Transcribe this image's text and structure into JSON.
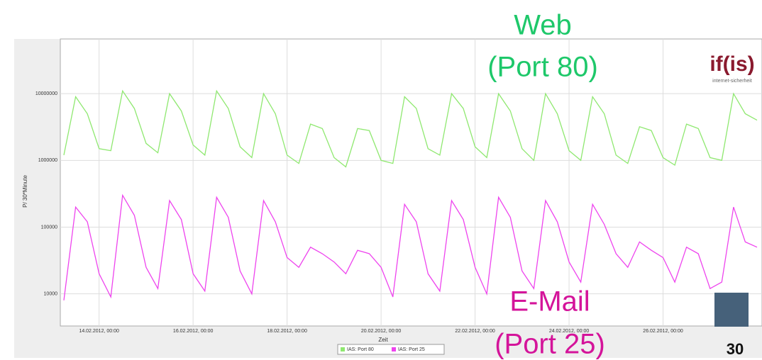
{
  "chart_data": {
    "type": "line",
    "ylabel": "P/ 30*Minute",
    "xlabel": "Zeit",
    "log_scale": true,
    "grid": true,
    "x": [
      "13.02.2012, 06:00",
      "13.02.2012, 12:00",
      "13.02.2012, 18:00",
      "14.02.2012, 00:00",
      "14.02.2012, 06:00",
      "14.02.2012, 12:00",
      "14.02.2012, 18:00",
      "15.02.2012, 00:00",
      "15.02.2012, 06:00",
      "15.02.2012, 12:00",
      "15.02.2012, 18:00",
      "16.02.2012, 00:00",
      "16.02.2012, 06:00",
      "16.02.2012, 12:00",
      "16.02.2012, 18:00",
      "17.02.2012, 00:00",
      "17.02.2012, 06:00",
      "17.02.2012, 12:00",
      "17.02.2012, 18:00",
      "18.02.2012, 00:00",
      "18.02.2012, 06:00",
      "18.02.2012, 12:00",
      "18.02.2012, 18:00",
      "19.02.2012, 00:00",
      "19.02.2012, 06:00",
      "19.02.2012, 12:00",
      "19.02.2012, 18:00",
      "20.02.2012, 00:00",
      "20.02.2012, 06:00",
      "20.02.2012, 12:00",
      "20.02.2012, 18:00",
      "21.02.2012, 00:00",
      "21.02.2012, 06:00",
      "21.02.2012, 12:00",
      "21.02.2012, 18:00",
      "22.02.2012, 00:00",
      "22.02.2012, 06:00",
      "22.02.2012, 12:00",
      "22.02.2012, 18:00",
      "23.02.2012, 00:00",
      "23.02.2012, 06:00",
      "23.02.2012, 12:00",
      "23.02.2012, 18:00",
      "24.02.2012, 00:00",
      "24.02.2012, 06:00",
      "24.02.2012, 12:00",
      "24.02.2012, 18:00",
      "25.02.2012, 00:00",
      "25.02.2012, 06:00",
      "25.02.2012, 12:00",
      "25.02.2012, 18:00",
      "26.02.2012, 00:00",
      "26.02.2012, 06:00",
      "26.02.2012, 12:00",
      "26.02.2012, 18:00",
      "27.02.2012, 00:00",
      "27.02.2012, 06:00",
      "27.02.2012, 12:00",
      "27.02.2012, 18:00",
      "28.02.2012, 00:00"
    ],
    "xticks": [
      "14.02.2012, 00:00",
      "16.02.2012, 00:00",
      "18.02.2012, 00:00",
      "20.02.2012, 00:00",
      "22.02.2012, 00:00",
      "24.02.2012, 00:00",
      "26.02.2012, 00:00"
    ],
    "ylim": [
      3300,
      66000000
    ],
    "yticks": [
      10000,
      100000,
      1000000,
      10000000
    ],
    "legend": "bottom",
    "series": [
      {
        "name": "IAS: Port 80",
        "color": "#8fe870",
        "values": [
          1200000,
          9000000,
          5000000,
          1500000,
          1400000,
          11000000,
          6000000,
          1800000,
          1300000,
          10000000,
          5500000,
          1700000,
          1200000,
          11000000,
          6000000,
          1600000,
          1100000,
          10000000,
          5000000,
          1200000,
          900000,
          3500000,
          3000000,
          1100000,
          800000,
          3000000,
          2800000,
          1000000,
          900000,
          9000000,
          6000000,
          1500000,
          1200000,
          10000000,
          6000000,
          1600000,
          1100000,
          10000000,
          5500000,
          1500000,
          1000000,
          10000000,
          5000000,
          1400000,
          1000000,
          9000000,
          5000000,
          1200000,
          900000,
          3200000,
          2800000,
          1100000,
          850000,
          3500000,
          3000000,
          1100000,
          1000000,
          10000000,
          5000000,
          4000000
        ]
      },
      {
        "name": "IAS: Port 25",
        "color": "#ee44ee",
        "values": [
          8000,
          200000,
          120000,
          20000,
          9000,
          300000,
          150000,
          25000,
          12000,
          250000,
          130000,
          20000,
          11000,
          280000,
          140000,
          22000,
          10000,
          250000,
          120000,
          35000,
          25000,
          50000,
          40000,
          30000,
          20000,
          45000,
          40000,
          25000,
          9000,
          220000,
          120000,
          20000,
          11000,
          250000,
          130000,
          25000,
          10000,
          280000,
          140000,
          22000,
          12000,
          250000,
          120000,
          30000,
          15000,
          220000,
          110000,
          40000,
          25000,
          60000,
          45000,
          35000,
          15000,
          50000,
          40000,
          12000,
          15000,
          200000,
          60000,
          50000
        ]
      }
    ]
  },
  "annotations": {
    "web": [
      "Web",
      "(Port 80)"
    ],
    "email": [
      "E-Mail",
      "(Port 25)"
    ]
  },
  "logo": {
    "mark": "if(is)",
    "subtitle": "internet-sicherheit"
  },
  "page_number": "30"
}
